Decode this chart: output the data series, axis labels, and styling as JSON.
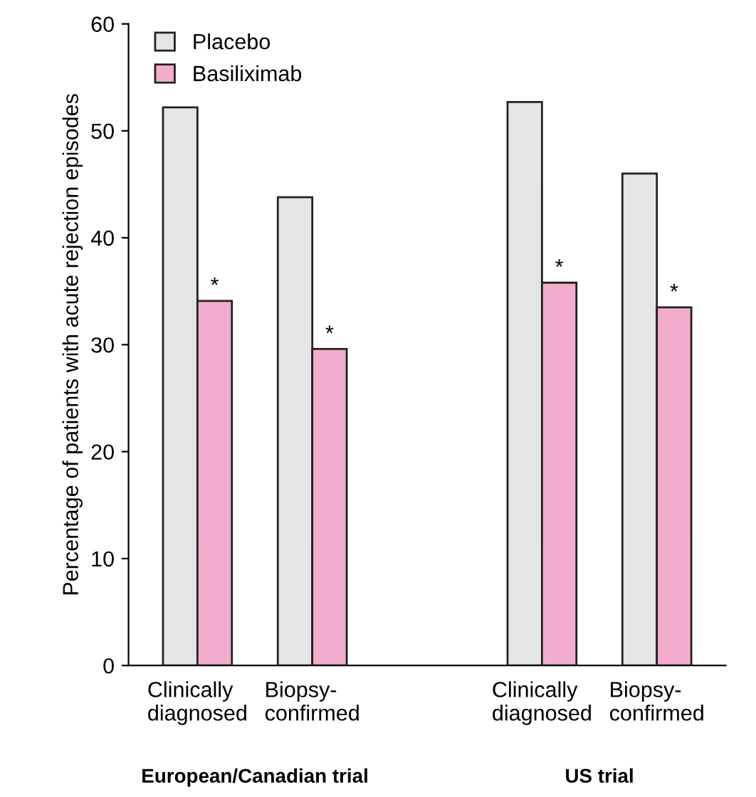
{
  "chart_data": {
    "type": "bar",
    "ylabel": "Percentage of patients with acute rejection episodes",
    "categories": [
      "Clinically\ndiagnosed",
      "Biopsy-\nconfirmed",
      null,
      "Clinically\ndiagnosed",
      "Biopsy-\nconfirmed"
    ],
    "series": [
      {
        "name": "Placebo",
        "color": "#e4e5e7",
        "values": [
          52.2,
          43.8,
          null,
          52.7,
          46.0
        ]
      },
      {
        "name": "Basiliximab",
        "color": "#f2adcd",
        "values": [
          34.1,
          29.6,
          null,
          35.8,
          33.5
        ]
      }
    ],
    "ylim": [
      0,
      60
    ],
    "yticks": [
      0,
      10,
      20,
      30,
      40,
      50,
      60
    ],
    "annotations": [
      "*",
      "*",
      "*",
      "*",
      "European/Canadian trial",
      "US trial"
    ],
    "grid": false,
    "legend": "top left"
  }
}
